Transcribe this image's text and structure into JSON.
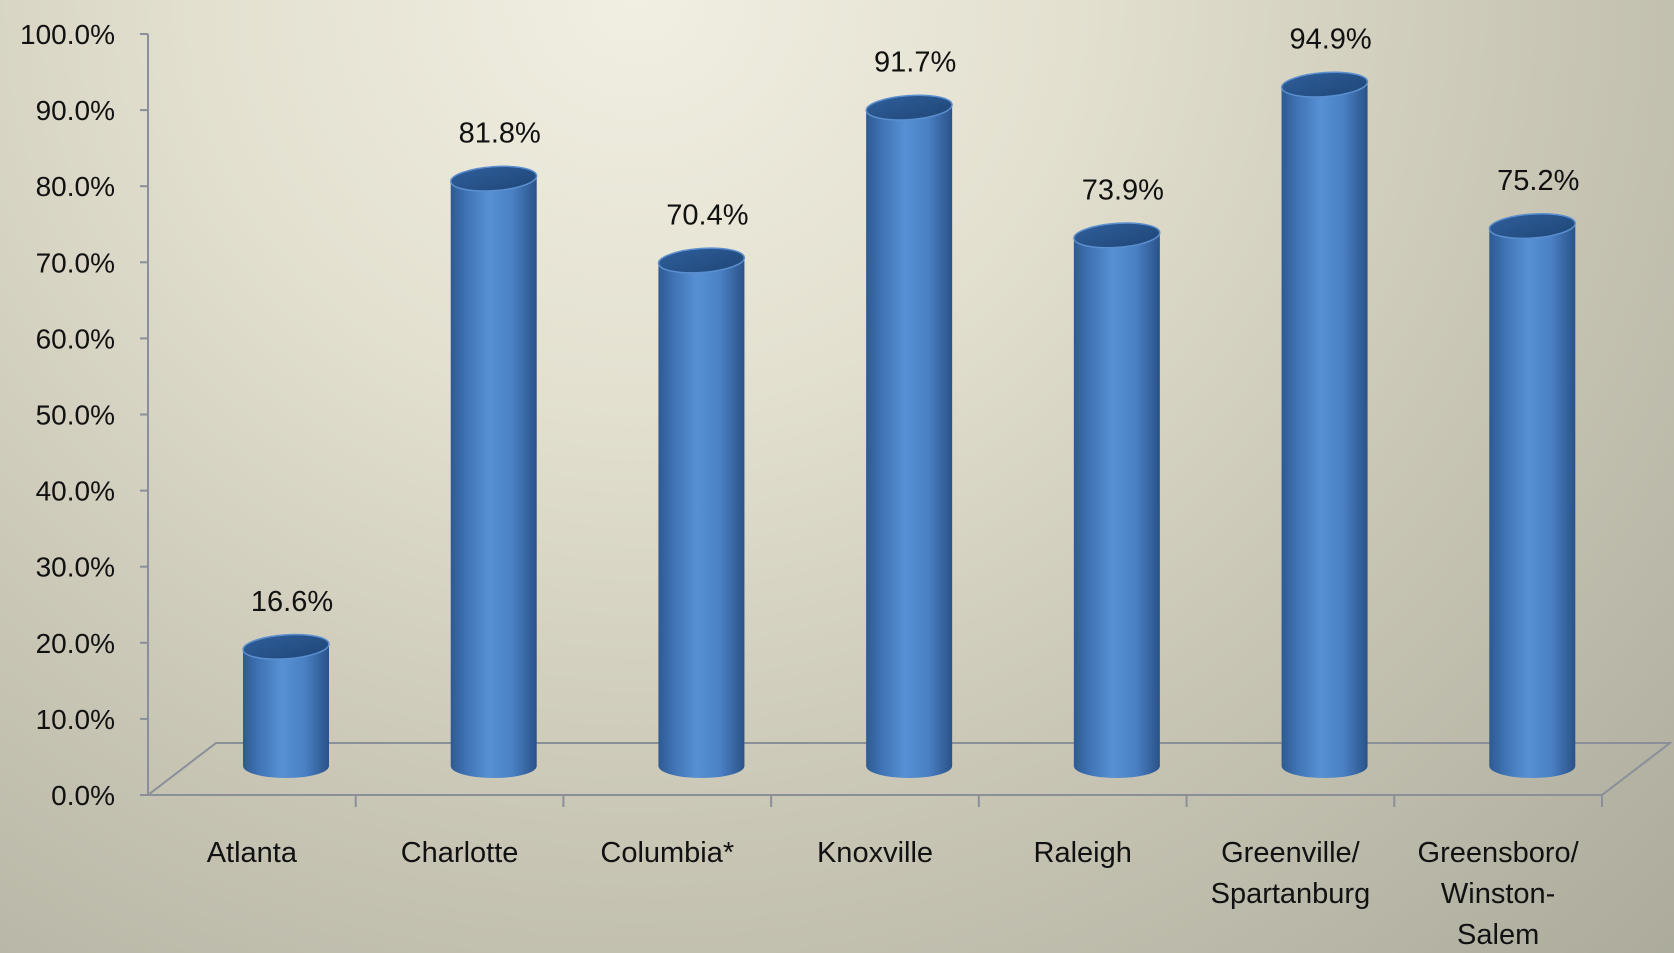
{
  "chart_data": {
    "type": "bar",
    "style": "3d-cylinder",
    "categories": [
      "Atlanta",
      "Charlotte",
      "Columbia*",
      "Knoxville",
      "Raleigh",
      "Greenville/\nSpartanburg",
      "Greensboro/\nWinston-\nSalem"
    ],
    "values": [
      16.6,
      81.8,
      70.4,
      91.7,
      73.9,
      94.9,
      75.2
    ],
    "value_labels": [
      "16.6%",
      "81.8%",
      "70.4%",
      "91.7%",
      "73.9%",
      "94.9%",
      "75.2%"
    ],
    "yticks": [
      "0.0%",
      "10.0%",
      "20.0%",
      "30.0%",
      "40.0%",
      "50.0%",
      "60.0%",
      "70.0%",
      "80.0%",
      "90.0%",
      "100.0%"
    ],
    "ylim": [
      0,
      100
    ],
    "title": "",
    "xlabel": "",
    "ylabel": "",
    "grid": false,
    "legend": "none",
    "bar_color": "#4f86c6"
  }
}
